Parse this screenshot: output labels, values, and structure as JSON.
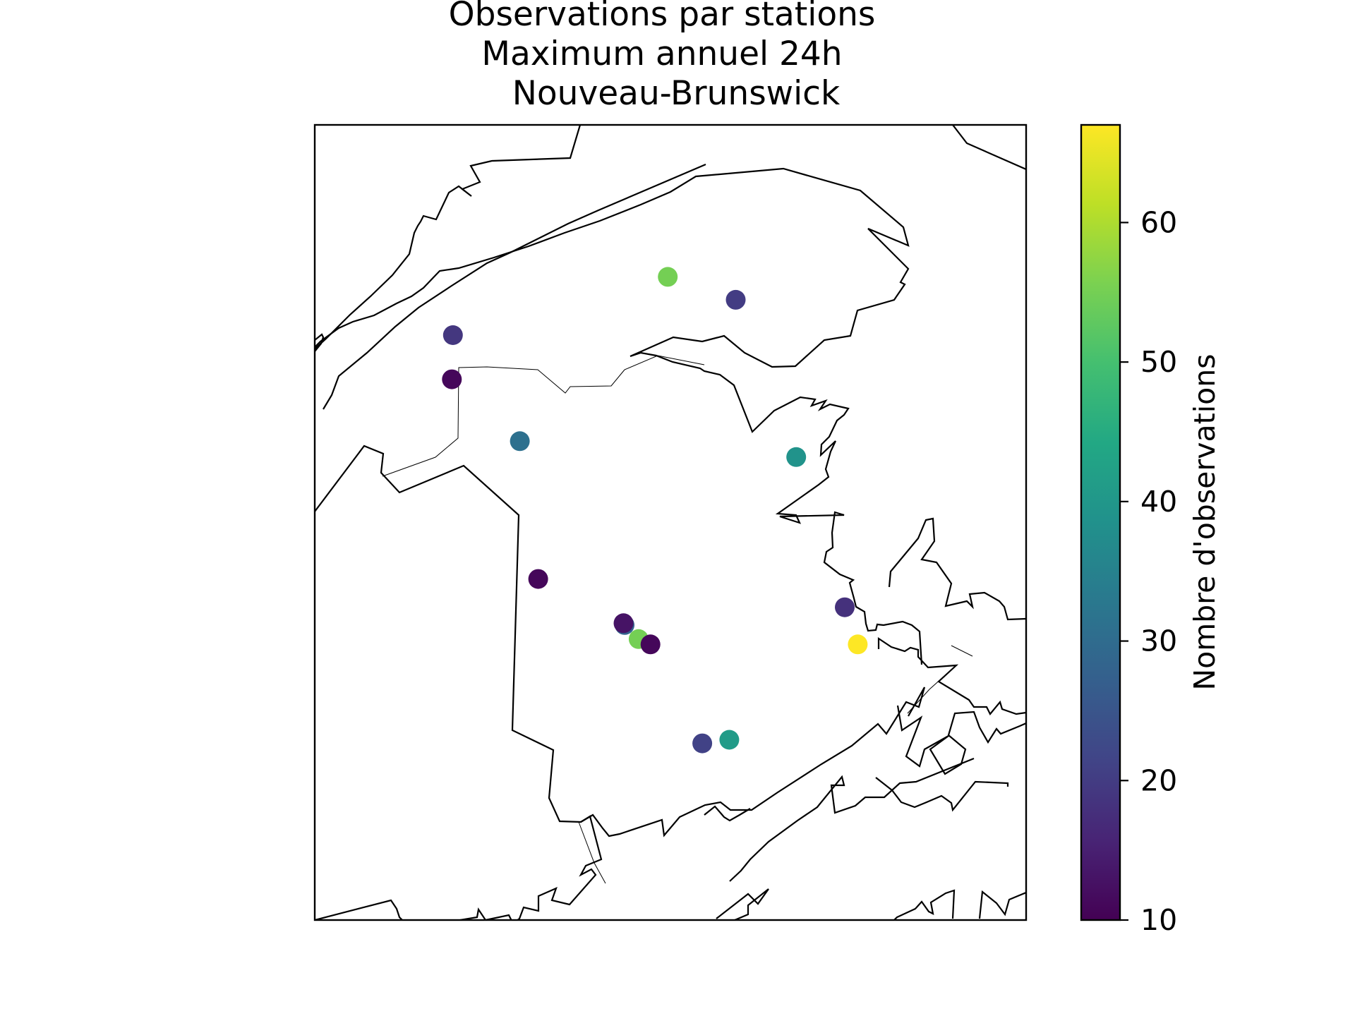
{
  "chart_data": {
    "type": "scatter",
    "title": [
      "Observations par stations",
      "Maximum annuel 24h",
      "Nouveau-Brunswick"
    ],
    "map_region": "Nouveau-Brunswick",
    "colorbar": {
      "label": "Nombre d'observations",
      "colormap": "viridis",
      "range": [
        10,
        67
      ],
      "ticks": [
        10,
        20,
        30,
        40,
        50,
        60
      ],
      "tick_labels": [
        "10",
        "20",
        "30",
        "40",
        "50",
        "60"
      ]
    },
    "stations": [
      {
        "lon": -66.31,
        "lat": 47.93,
        "observations": 55
      },
      {
        "lon": -65.68,
        "lat": 47.8,
        "observations": 20
      },
      {
        "lon": -68.3,
        "lat": 47.6,
        "observations": 19
      },
      {
        "lon": -68.31,
        "lat": 47.35,
        "observations": 11
      },
      {
        "lon": -67.68,
        "lat": 47.0,
        "observations": 31
      },
      {
        "lon": -65.12,
        "lat": 46.91,
        "observations": 39
      },
      {
        "lon": -67.51,
        "lat": 46.22,
        "observations": 11
      },
      {
        "lon": -64.67,
        "lat": 46.06,
        "observations": 18
      },
      {
        "lon": -64.55,
        "lat": 45.85,
        "observations": 67
      },
      {
        "lon": -66.71,
        "lat": 45.96,
        "observations": 28
      },
      {
        "lon": -66.72,
        "lat": 45.97,
        "observations": 13
      },
      {
        "lon": -66.58,
        "lat": 45.88,
        "observations": 55
      },
      {
        "lon": -66.47,
        "lat": 45.85,
        "observations": 11
      },
      {
        "lon": -65.99,
        "lat": 45.29,
        "observations": 21
      },
      {
        "lon": -65.74,
        "lat": 45.31,
        "observations": 41
      }
    ]
  }
}
